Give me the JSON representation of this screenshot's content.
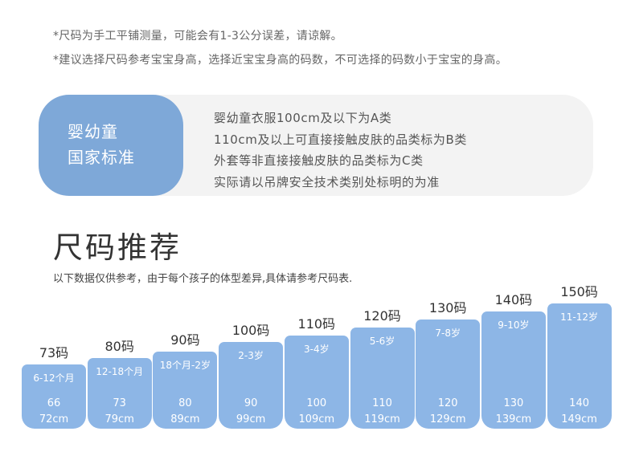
{
  "notes": [
    "*尺码为手工平铺测量，可能会有1-3公分误差，请谅解。",
    "*建议选择尺码参考宝宝身高，选择近宝宝身高的码数，不可选择的码数小于宝宝的身高。"
  ],
  "standard": {
    "badge_line1": "婴幼童",
    "badge_line2": "国家标准",
    "lines": [
      "婴幼童衣服100cm及以下为A类",
      "110cm及以上可直接接触皮肤的品类标为B类",
      "外套等非直接接触皮肤的品类标为C类",
      "实际请以吊牌安全技术类别处标明的为准"
    ]
  },
  "section": {
    "title": "尺码推荐",
    "subtitle": "以下数据仅供参考，由于每个孩子的体型差异,具体请参考尺码表."
  },
  "colors": {
    "bar": "#8db6e6",
    "badge": "#7ea8d8",
    "panel": "#f3f3f3"
  },
  "sizes": [
    {
      "label": "73码",
      "age": "6-12个月",
      "height": "66",
      "range": "72cm"
    },
    {
      "label": "80码",
      "age": "12-18个月",
      "height": "73",
      "range": "79cm"
    },
    {
      "label": "90码",
      "age": "18个月-2岁",
      "height": "80",
      "range": "89cm"
    },
    {
      "label": "100码",
      "age": "2-3岁",
      "height": "90",
      "range": "99cm"
    },
    {
      "label": "110码",
      "age": "3-4岁",
      "height": "100",
      "range": "109cm"
    },
    {
      "label": "120码",
      "age": "5-6岁",
      "height": "110",
      "range": "119cm"
    },
    {
      "label": "130码",
      "age": "7-8岁",
      "height": "120",
      "range": "129cm"
    },
    {
      "label": "140码",
      "age": "9-10岁",
      "height": "130",
      "range": "139cm"
    },
    {
      "label": "150码",
      "age": "11-12岁",
      "height": "140",
      "range": "149cm"
    }
  ]
}
